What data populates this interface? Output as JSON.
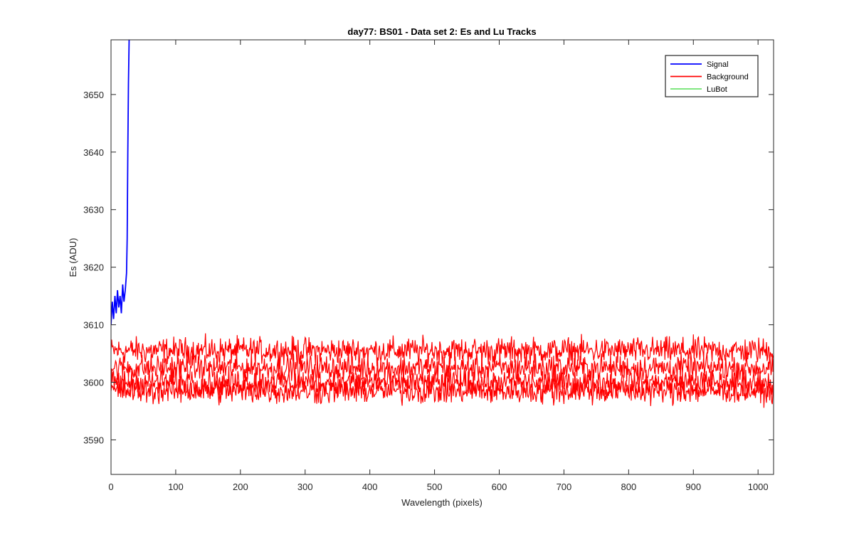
{
  "chart_data": {
    "type": "line",
    "title": "day77: BS01 - Data set 2: Es and Lu Tracks",
    "xlabel": "Wavelength (pixels)",
    "ylabel": "Es (ADU)",
    "xlim": [
      0,
      1024
    ],
    "ylim": [
      3584,
      3659.5
    ],
    "xticks": [
      0,
      100,
      200,
      300,
      400,
      500,
      600,
      700,
      800,
      900,
      1000
    ],
    "yticks": [
      3590,
      3600,
      3610,
      3620,
      3630,
      3640,
      3650
    ],
    "grid": false,
    "legend_position": "top-right",
    "series": [
      {
        "name": "Signal",
        "color": "#0000ff",
        "x": [
          0,
          2,
          4,
          6,
          8,
          10,
          12,
          14,
          16,
          18,
          20,
          22,
          24,
          25,
          26,
          27,
          28
        ],
        "y": [
          3610,
          3614,
          3611,
          3615,
          3612,
          3616,
          3613,
          3615,
          3612,
          3617,
          3614,
          3616,
          3619,
          3625,
          3640,
          3652,
          3660
        ]
      },
      {
        "name": "Background",
        "color": "#ff0000",
        "description_levels": [
          3605.5,
          3602.5,
          3600.0,
          3598.5
        ],
        "noise_amplitude": 1.6
      },
      {
        "name": "LuBot",
        "color": "#00cc00"
      }
    ]
  }
}
